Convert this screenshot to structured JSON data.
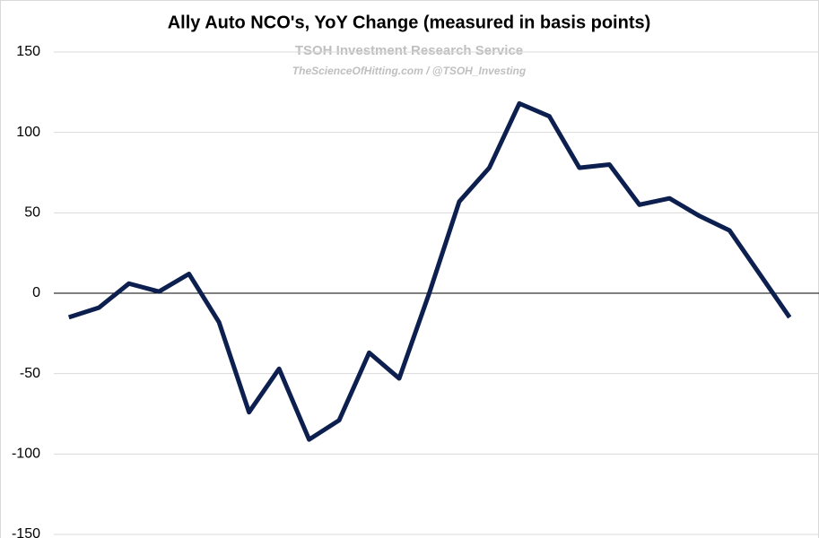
{
  "chart_data": {
    "type": "line",
    "title": "Ally Auto NCO's, YoY Change (measured in basis points)",
    "subtitle": "TSOH Investment Research Service",
    "annotation": "TheScienceOfHitting.com / @TSOH_Investing",
    "categories": [
      null,
      null,
      null,
      null,
      null,
      null,
      null,
      null,
      null,
      null,
      null,
      null,
      null,
      null,
      null,
      null,
      null,
      null,
      null,
      null,
      null,
      null,
      null,
      null,
      null
    ],
    "series": [
      {
        "color": "#0c1f4f",
        "values": [
          -15,
          -9,
          6,
          1,
          12,
          -18,
          -74,
          -47,
          -91,
          -79,
          -37,
          -53,
          0,
          57,
          78,
          118,
          110,
          78,
          80,
          55,
          59,
          48,
          39,
          12,
          -15
        ]
      }
    ],
    "ylim": [
      -150,
      150
    ],
    "yticks": [
      -150,
      -100,
      -50,
      0,
      50,
      100,
      150
    ],
    "grid": true
  }
}
